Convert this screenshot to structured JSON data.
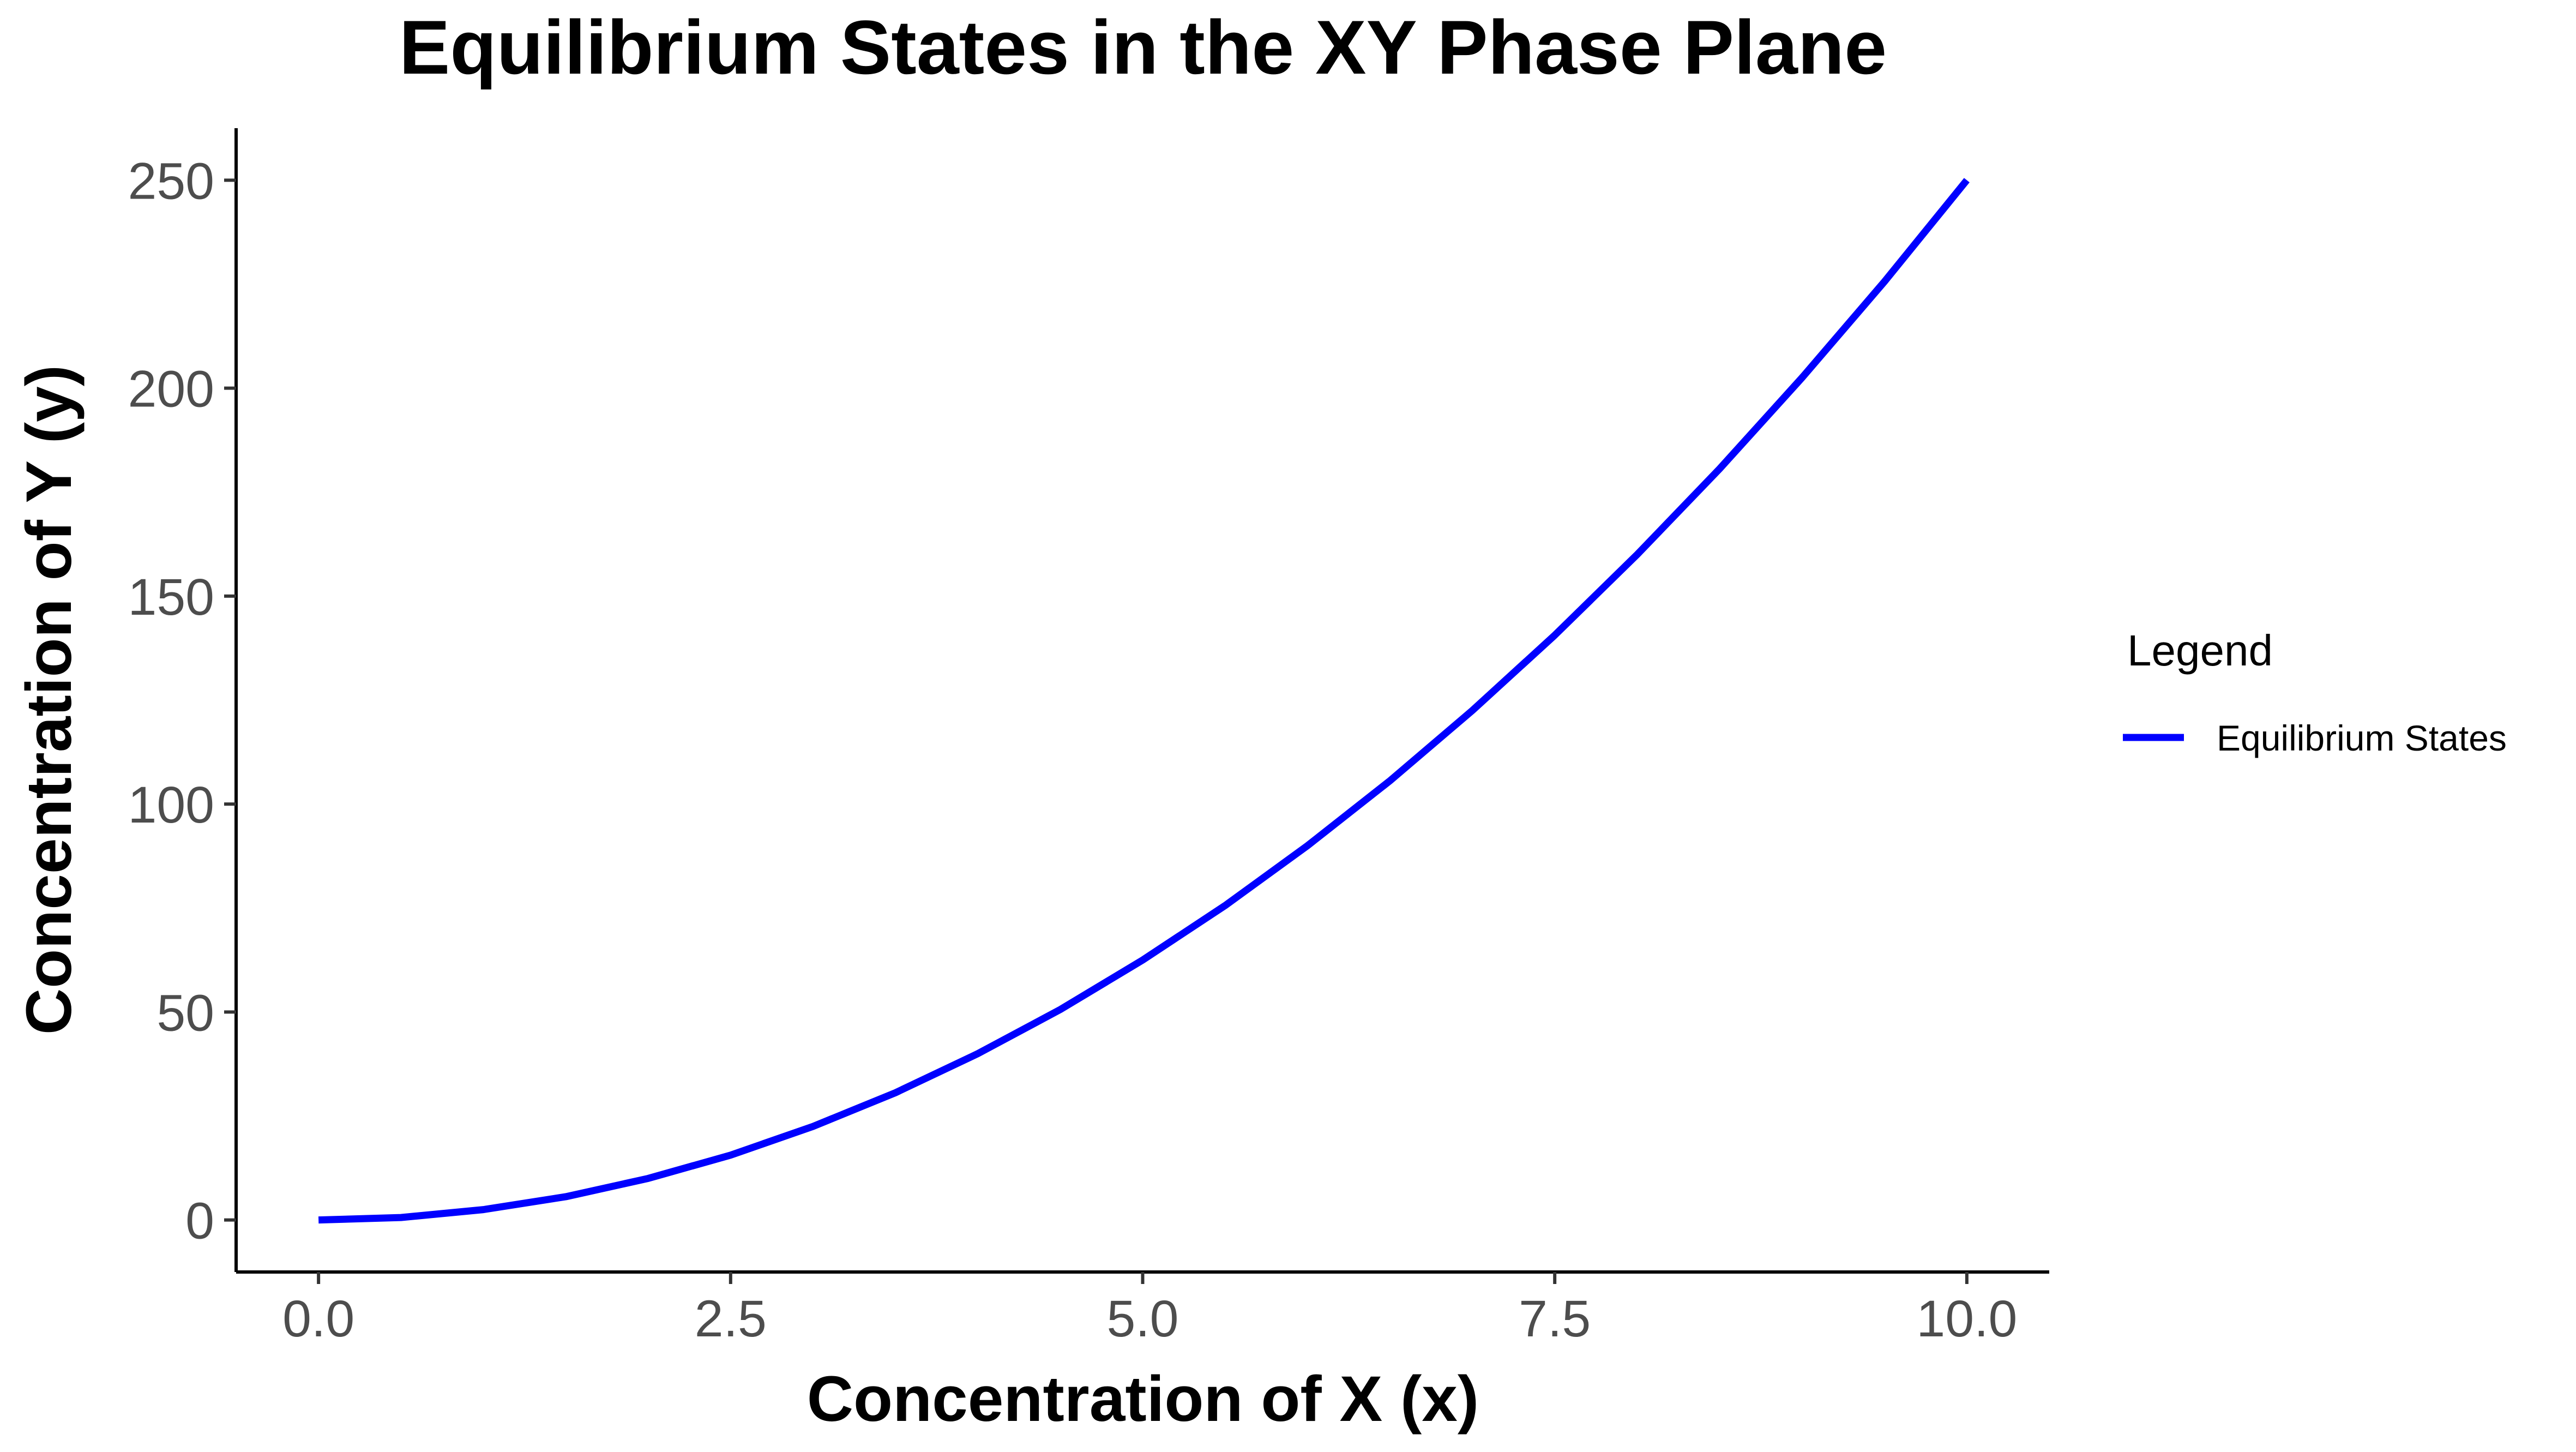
{
  "chart_data": {
    "type": "line",
    "title": "Equilibrium States in the XY Phase Plane",
    "xlabel": "Concentration of X (x)",
    "ylabel": "Concentration of Y (y)",
    "xlim": [
      -0.5,
      10.5
    ],
    "ylim": [
      -12.5,
      262.5
    ],
    "x_ticks": [
      0.0,
      2.5,
      5.0,
      7.5,
      10.0
    ],
    "x_tick_labels": [
      "0.0",
      "2.5",
      "5.0",
      "7.5",
      "10.0"
    ],
    "y_ticks": [
      0,
      50,
      100,
      150,
      200,
      250
    ],
    "y_tick_labels": [
      "0",
      "50",
      "100",
      "150",
      "200",
      "250"
    ],
    "grid": false,
    "legend": {
      "title": "Legend",
      "placement": "right"
    },
    "series": [
      {
        "name": "Equilibrium States",
        "color": "#0000ff",
        "x": [
          0,
          0.5,
          1,
          1.5,
          2,
          2.5,
          3,
          3.5,
          4,
          4.5,
          5,
          5.5,
          6,
          6.5,
          7,
          7.5,
          8,
          8.5,
          9,
          9.5,
          10
        ],
        "y": [
          0,
          0.6,
          2.5,
          5.6,
          10,
          15.6,
          22.5,
          30.6,
          40,
          50.6,
          62.5,
          75.6,
          90,
          105.6,
          122.5,
          140.6,
          160,
          180.6,
          202.5,
          225.6,
          250
        ]
      }
    ]
  }
}
